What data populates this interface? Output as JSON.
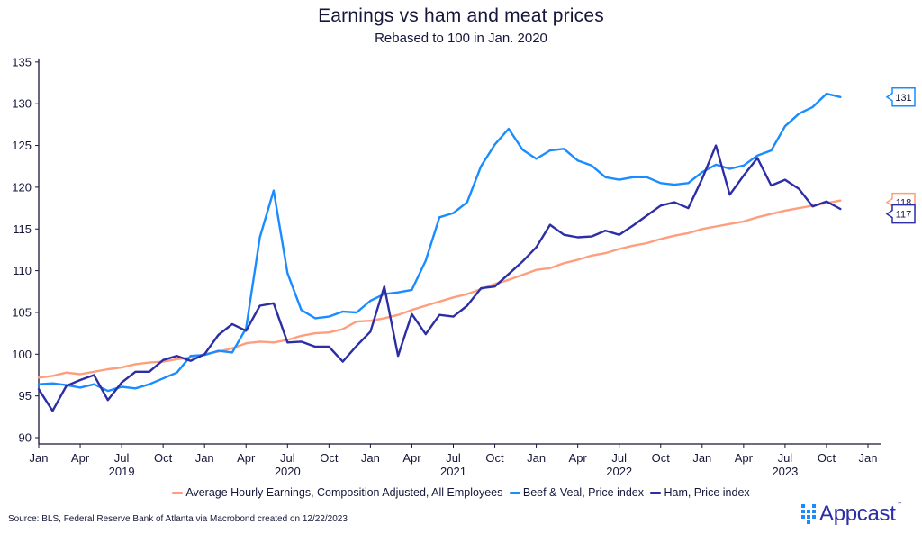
{
  "chart_data": {
    "type": "line",
    "title": "Earnings vs ham and meat prices",
    "subtitle": "Rebased to 100 in Jan. 2020",
    "xlabel": "",
    "ylabel": "",
    "ylim": [
      90,
      135
    ],
    "yticks": [
      90,
      95,
      100,
      105,
      110,
      115,
      120,
      125,
      130,
      135
    ],
    "x_start": "2019-01",
    "x_end_axis": "2024-01",
    "grid": false,
    "legend_position": "bottom",
    "xtick_labels": [
      "Jan",
      "Apr",
      "Jul",
      "Oct",
      "Jan",
      "Apr",
      "Jul",
      "Oct",
      "Jan",
      "Apr",
      "Jul",
      "Oct",
      "Jan",
      "Apr",
      "Jul",
      "Oct",
      "Jan",
      "Apr",
      "Jul",
      "Oct",
      "Jan"
    ],
    "year_labels": [
      "2019",
      "2020",
      "2021",
      "2022",
      "2023"
    ],
    "series": [
      {
        "name": "Average Hourly Earnings, Composition Adjusted, All Employees",
        "color": "#ff9e7d",
        "end_label": "118",
        "values": [
          97.2,
          97.4,
          97.8,
          97.6,
          97.9,
          98.2,
          98.4,
          98.8,
          99.0,
          99.1,
          99.4,
          99.6,
          100.0,
          100.3,
          100.7,
          101.3,
          101.5,
          101.4,
          101.7,
          102.2,
          102.5,
          102.6,
          103.0,
          103.9,
          104.0,
          104.3,
          104.7,
          105.3,
          105.8,
          106.3,
          106.8,
          107.2,
          107.8,
          108.4,
          108.9,
          109.5,
          110.1,
          110.3,
          110.9,
          111.3,
          111.8,
          112.1,
          112.6,
          113.0,
          113.3,
          113.8,
          114.2,
          114.5,
          115.0,
          115.3,
          115.6,
          115.9,
          116.4,
          116.8,
          117.2,
          117.5,
          117.8,
          118.1,
          118.4
        ]
      },
      {
        "name": "Beef & Veal, Price index",
        "color": "#1a8cff",
        "end_label": "131",
        "values": [
          96.4,
          96.5,
          96.3,
          96.0,
          96.4,
          95.6,
          96.1,
          95.9,
          96.4,
          97.1,
          97.8,
          99.8,
          99.9,
          100.4,
          100.2,
          103.1,
          114.0,
          119.6,
          109.7,
          105.3,
          104.3,
          104.5,
          105.1,
          105.0,
          106.4,
          107.2,
          107.4,
          107.7,
          111.2,
          116.4,
          116.9,
          118.2,
          122.5,
          125.1,
          127.0,
          124.5,
          123.4,
          124.4,
          124.6,
          123.2,
          122.6,
          121.2,
          120.9,
          121.2,
          121.2,
          120.5,
          120.3,
          120.5,
          121.8,
          122.7,
          122.2,
          122.6,
          123.8,
          124.4,
          127.3,
          128.8,
          129.6,
          131.2,
          130.8
        ]
      },
      {
        "name": "Ham, Price index",
        "color": "#2c2ea6",
        "end_label": "117",
        "values": [
          95.8,
          93.2,
          96.2,
          96.9,
          97.5,
          94.5,
          96.6,
          97.9,
          97.9,
          99.3,
          99.8,
          99.2,
          100.0,
          102.3,
          103.6,
          102.8,
          105.8,
          106.1,
          101.4,
          101.5,
          100.9,
          100.9,
          99.1,
          101.0,
          102.7,
          108.1,
          99.8,
          104.8,
          102.4,
          104.7,
          104.5,
          105.8,
          107.9,
          108.1,
          109.6,
          111.1,
          112.8,
          115.5,
          114.3,
          114.0,
          114.1,
          114.8,
          114.3,
          115.4,
          116.6,
          117.8,
          118.2,
          117.5,
          121.0,
          125.0,
          119.1,
          121.4,
          123.5,
          120.2,
          120.9,
          119.8,
          117.7,
          118.3,
          117.4
        ]
      }
    ]
  },
  "footer": {
    "source": "Source: BLS, Federal Reserve Bank of Atlanta via Macrobond created on 12/22/2023",
    "logo_text": "Appcast",
    "logo_tm": "™"
  }
}
